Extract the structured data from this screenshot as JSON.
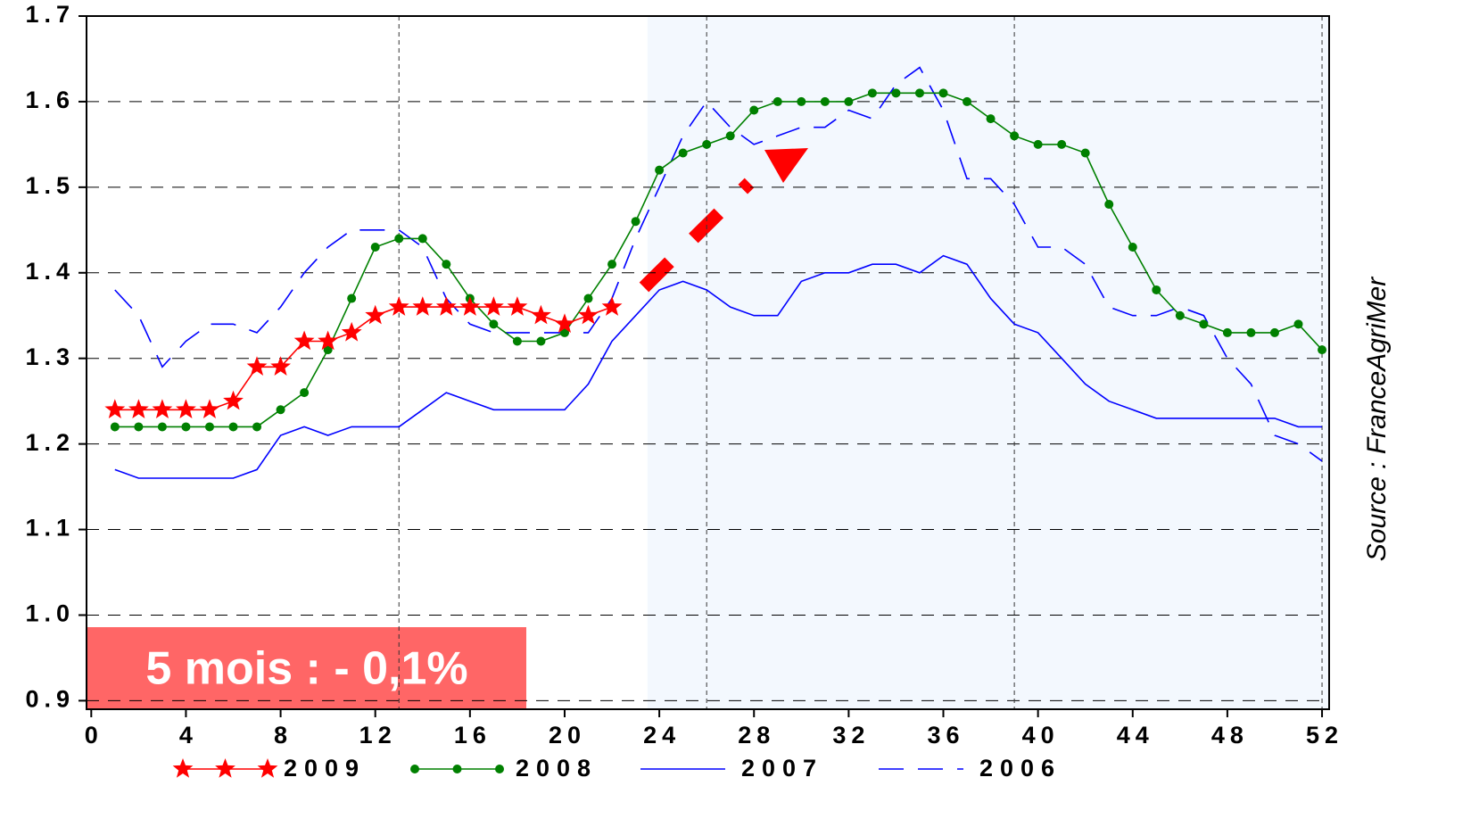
{
  "chart_data": {
    "type": "line",
    "x": [
      1,
      2,
      3,
      4,
      5,
      6,
      7,
      8,
      9,
      10,
      11,
      12,
      13,
      14,
      15,
      16,
      17,
      18,
      19,
      20,
      21,
      22,
      23,
      24,
      25,
      26,
      27,
      28,
      29,
      30,
      31,
      32,
      33,
      34,
      35,
      36,
      37,
      38,
      39,
      40,
      41,
      42,
      43,
      44,
      45,
      46,
      47,
      48,
      49,
      50,
      51,
      52
    ],
    "series": [
      {
        "name": "2009",
        "color": "#ff0000",
        "marker": "star",
        "dash": "solid",
        "values": [
          1.24,
          1.24,
          1.24,
          1.24,
          1.24,
          1.25,
          1.29,
          1.29,
          1.32,
          1.32,
          1.33,
          1.35,
          1.36,
          1.36,
          1.36,
          1.36,
          1.36,
          1.36,
          1.35,
          1.34,
          1.35,
          1.36,
          null,
          null,
          null,
          null,
          null,
          null,
          null,
          null,
          null,
          null,
          null,
          null,
          null,
          null,
          null,
          null,
          null,
          null,
          null,
          null,
          null,
          null,
          null,
          null,
          null,
          null,
          null,
          null,
          null,
          null
        ]
      },
      {
        "name": "2008",
        "color": "#008000",
        "marker": "circle",
        "dash": "solid",
        "values": [
          1.22,
          1.22,
          1.22,
          1.22,
          1.22,
          1.22,
          1.22,
          1.24,
          1.26,
          1.31,
          1.37,
          1.43,
          1.44,
          1.44,
          1.41,
          1.37,
          1.34,
          1.32,
          1.32,
          1.33,
          1.37,
          1.41,
          1.46,
          1.52,
          1.54,
          1.55,
          1.56,
          1.59,
          1.6,
          1.6,
          1.6,
          1.6,
          1.61,
          1.61,
          1.61,
          1.61,
          1.6,
          1.58,
          1.56,
          1.55,
          1.55,
          1.54,
          1.48,
          1.43,
          1.38,
          1.35,
          1.34,
          1.33,
          1.33,
          1.33,
          1.34,
          1.31
        ]
      },
      {
        "name": "2007",
        "color": "#0000ff",
        "marker": "none",
        "dash": "solid",
        "values": [
          1.17,
          1.16,
          1.16,
          1.16,
          1.16,
          1.16,
          1.17,
          1.21,
          1.22,
          1.21,
          1.22,
          1.22,
          1.22,
          1.24,
          1.26,
          1.25,
          1.24,
          1.24,
          1.24,
          1.24,
          1.27,
          1.32,
          1.35,
          1.38,
          1.39,
          1.38,
          1.36,
          1.35,
          1.35,
          1.39,
          1.4,
          1.4,
          1.41,
          1.41,
          1.4,
          1.42,
          1.41,
          1.37,
          1.34,
          1.33,
          1.3,
          1.27,
          1.25,
          1.24,
          1.23,
          1.23,
          1.23,
          1.23,
          1.23,
          1.23,
          1.22,
          1.22
        ]
      },
      {
        "name": "2006",
        "color": "#0000ff",
        "marker": "none",
        "dash": "dashed",
        "values": [
          1.38,
          1.35,
          1.29,
          1.32,
          1.34,
          1.34,
          1.33,
          1.36,
          1.4,
          1.43,
          1.45,
          1.45,
          1.45,
          1.43,
          1.37,
          1.34,
          1.33,
          1.33,
          1.33,
          1.33,
          1.33,
          1.37,
          1.44,
          1.5,
          1.56,
          1.6,
          1.57,
          1.55,
          1.56,
          1.57,
          1.57,
          1.59,
          1.58,
          1.62,
          1.64,
          1.59,
          1.51,
          1.51,
          1.48,
          1.43,
          1.43,
          1.41,
          1.36,
          1.35,
          1.35,
          1.36,
          1.35,
          1.3,
          1.27,
          1.21,
          1.2,
          1.18
        ]
      }
    ],
    "xlim": [
      -0.2,
      52.3
    ],
    "xticks": [
      0,
      4,
      8,
      12,
      16,
      20,
      24,
      28,
      32,
      36,
      40,
      44,
      48,
      52
    ],
    "ylim": [
      0.89,
      1.7
    ],
    "yticks": [
      0.9,
      1.1,
      {
        "value": 1,
        "label": "1.0"
      },
      1.2,
      1.3,
      1.4,
      1.5,
      1.6,
      1.7
    ],
    "grid": true,
    "vgrid": [
      13,
      26,
      39,
      52
    ],
    "highlight_x": [
      23.5,
      52.3
    ],
    "legend": "bottom",
    "annotation": "5 mois : - 0,1%",
    "source": "Source : FranceAgriMer"
  }
}
